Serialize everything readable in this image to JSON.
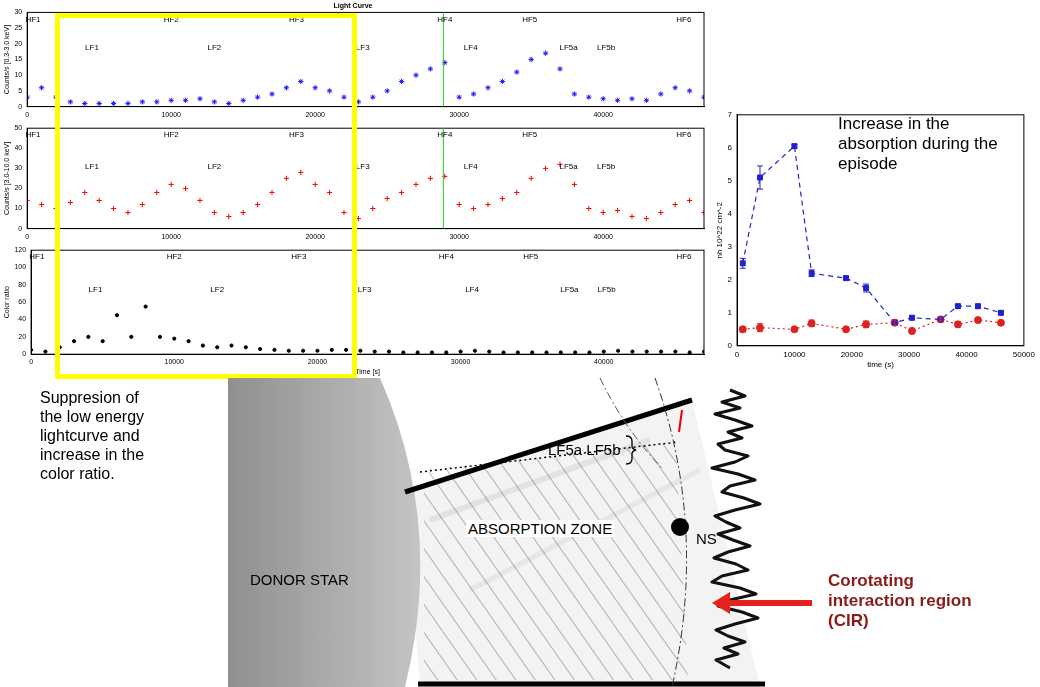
{
  "chart_data": [
    {
      "type": "scatter",
      "title": "Light Curve",
      "y_label": "Counts/s [0.3-3.0 keV]",
      "x": [
        0,
        1000,
        2000,
        3000,
        4000,
        5000,
        6000,
        7000,
        8000,
        9000,
        10000,
        11000,
        12000,
        13000,
        14000,
        15000,
        16000,
        17000,
        18000,
        19000,
        20000,
        21000,
        22000,
        23000,
        24000,
        25000,
        26000,
        27000,
        28000,
        29000,
        30000,
        31000,
        32000,
        33000,
        34000,
        35000,
        36000,
        37000,
        38000,
        39000,
        40000,
        41000,
        42000,
        43000,
        44000,
        45000,
        46000,
        47000
      ],
      "series": [
        {
          "color": "#1a1aff",
          "marker": "star",
          "values": [
            3,
            6,
            3,
            1.5,
            1,
            1,
            1,
            1,
            1.5,
            1.5,
            2,
            2,
            2.5,
            1.5,
            1,
            2,
            3,
            4,
            6,
            8,
            6,
            5,
            3,
            1.5,
            3,
            5,
            8,
            10,
            12,
            14,
            3,
            4,
            6,
            8,
            11,
            15,
            17,
            12,
            4,
            3,
            2.5,
            2,
            2.5,
            2,
            4,
            6,
            5,
            3
          ]
        }
      ],
      "xlim": [
        0,
        47000
      ],
      "xticks": [
        0,
        10000,
        20000,
        30000,
        40000
      ],
      "ylim": [
        0,
        30
      ],
      "yticks": [
        0,
        5,
        10,
        15,
        20,
        25,
        30
      ],
      "grid": false,
      "vertical_line": {
        "x": 28900,
        "color": "#22cc22"
      },
      "phase_labels_high": [
        {
          "text": "HF1",
          "x": 400
        },
        {
          "text": "HF2",
          "x": 10000
        },
        {
          "text": "HF3",
          "x": 18700
        },
        {
          "text": "HF4",
          "x": 29000
        },
        {
          "text": "HF5",
          "x": 34900
        },
        {
          "text": "HF6",
          "x": 45600
        }
      ],
      "phase_labels_low": [
        {
          "text": "LF1",
          "x": 4500
        },
        {
          "text": "LF2",
          "x": 13000
        },
        {
          "text": "LF3",
          "x": 23300
        },
        {
          "text": "LF4",
          "x": 30800
        },
        {
          "text": "LF5a",
          "x": 37600
        },
        {
          "text": "LF5b",
          "x": 40200
        }
      ]
    },
    {
      "type": "scatter",
      "y_label": "Counts/s [3.0-10.0 keV]",
      "x": [
        0,
        1000,
        2000,
        3000,
        4000,
        5000,
        6000,
        7000,
        8000,
        9000,
        10000,
        11000,
        12000,
        13000,
        14000,
        15000,
        16000,
        17000,
        18000,
        19000,
        20000,
        21000,
        22000,
        23000,
        24000,
        25000,
        26000,
        27000,
        28000,
        29000,
        30000,
        31000,
        32000,
        33000,
        34000,
        35000,
        36000,
        37000,
        38000,
        39000,
        40000,
        41000,
        42000,
        43000,
        44000,
        45000,
        46000,
        47000
      ],
      "series": [
        {
          "color": "#ff0000",
          "marker": "cross",
          "values": [
            14,
            12,
            10,
            13,
            18,
            14,
            10,
            8,
            12,
            18,
            22,
            20,
            14,
            8,
            6,
            8,
            12,
            18,
            25,
            28,
            22,
            18,
            8,
            5,
            10,
            15,
            18,
            22,
            25,
            26,
            12,
            10,
            12,
            15,
            18,
            25,
            30,
            32,
            22,
            10,
            8,
            9,
            6,
            5,
            8,
            12,
            14,
            8
          ]
        }
      ],
      "xlim": [
        0,
        47000
      ],
      "xticks": [
        0,
        10000,
        20000,
        30000,
        40000
      ],
      "ylim": [
        0,
        50
      ],
      "yticks": [
        0,
        10,
        20,
        30,
        40,
        50
      ],
      "grid": false,
      "vertical_line": {
        "x": 28900,
        "color": "#22cc22"
      },
      "phase_labels_high": [
        {
          "text": "HF1",
          "x": 400
        },
        {
          "text": "HF2",
          "x": 10000
        },
        {
          "text": "HF3",
          "x": 18700
        },
        {
          "text": "HF4",
          "x": 29000
        },
        {
          "text": "HF5",
          "x": 34900
        },
        {
          "text": "HF6",
          "x": 45600
        }
      ],
      "phase_labels_low": [
        {
          "text": "LF1",
          "x": 4500
        },
        {
          "text": "LF2",
          "x": 13000
        },
        {
          "text": "LF3",
          "x": 23300
        },
        {
          "text": "LF4",
          "x": 30800
        },
        {
          "text": "LF5a",
          "x": 37600
        },
        {
          "text": "LF5b",
          "x": 40200
        }
      ]
    },
    {
      "type": "scatter",
      "y_label": "Color ratio",
      "x_label": "Time [s]",
      "x": [
        0,
        1000,
        2000,
        3000,
        4000,
        5000,
        6000,
        7000,
        8000,
        9000,
        10000,
        11000,
        12000,
        13000,
        14000,
        15000,
        16000,
        17000,
        18000,
        19000,
        20000,
        21000,
        22000,
        23000,
        24000,
        25000,
        26000,
        27000,
        28000,
        29000,
        30000,
        31000,
        32000,
        33000,
        34000,
        35000,
        36000,
        37000,
        38000,
        39000,
        40000,
        41000,
        42000,
        43000,
        44000,
        45000,
        46000,
        47000
      ],
      "series": [
        {
          "color": "#000000",
          "marker": "circle",
          "values": [
            5,
            3,
            8,
            15,
            20,
            15,
            45,
            20,
            55,
            20,
            18,
            15,
            10,
            8,
            10,
            8,
            6,
            5,
            4,
            4,
            4,
            5,
            5,
            4,
            3,
            3,
            2,
            2,
            2,
            2,
            3,
            4,
            3,
            2,
            2,
            2,
            2,
            2,
            2,
            2,
            3,
            4,
            3,
            3,
            3,
            3,
            2,
            3
          ]
        }
      ],
      "xlim": [
        0,
        47000
      ],
      "xticks": [
        0,
        10000,
        20000,
        30000,
        40000
      ],
      "ylim": [
        0,
        120
      ],
      "yticks": [
        0,
        20,
        40,
        60,
        80,
        100,
        120
      ],
      "grid": false,
      "phase_labels_high": [
        {
          "text": "HF1",
          "x": 400
        },
        {
          "text": "HF2",
          "x": 10000
        },
        {
          "text": "HF3",
          "x": 18700
        },
        {
          "text": "HF4",
          "x": 29000
        },
        {
          "text": "HF5",
          "x": 34900
        },
        {
          "text": "HF6",
          "x": 45600
        }
      ],
      "phase_labels_low": [
        {
          "text": "LF1",
          "x": 4500
        },
        {
          "text": "LF2",
          "x": 13000
        },
        {
          "text": "LF3",
          "x": 23300
        },
        {
          "text": "LF4",
          "x": 30800
        },
        {
          "text": "LF5a",
          "x": 37600
        },
        {
          "text": "LF5b",
          "x": 40200
        }
      ]
    },
    {
      "type": "line",
      "x_label": "time (s)",
      "y_label": "nh 10^22 cm^-2",
      "x": [
        1000,
        4000,
        10000,
        13000,
        19000,
        22500,
        27500,
        30500,
        35500,
        38500,
        42000,
        46000
      ],
      "series": [
        {
          "color": "#2222cc",
          "marker": "square",
          "line_style": "dashed",
          "values": [
            2.5,
            5.1,
            6.05,
            2.2,
            2.05,
            1.75,
            0.7,
            0.85,
            0.8,
            1.2,
            1.2,
            1.0
          ],
          "errors": [
            0.15,
            0.35,
            0.06,
            0.1,
            0.06,
            0.12,
            0.06,
            0.06,
            0.05,
            0.06,
            0.06,
            0.06
          ]
        },
        {
          "color": "#dd2222",
          "marker": "circle",
          "line_style": "dotted",
          "values": [
            0.5,
            0.55,
            0.5,
            0.68,
            0.5,
            0.65,
            0.7,
            0.45,
            0.8,
            0.65,
            0.78,
            0.7
          ],
          "errors": [
            0.08,
            0.12,
            0.05,
            0.1,
            0.05,
            0.1,
            0.08,
            0.08,
            0.05,
            0.08,
            0.08,
            0.06
          ]
        }
      ],
      "xlim": [
        0,
        50000
      ],
      "xticks": [
        0,
        10000,
        20000,
        30000,
        40000,
        50000
      ],
      "ylim": [
        0,
        7
      ],
      "yticks": [
        0,
        1,
        2,
        3,
        4,
        5,
        6,
        7
      ],
      "grid": false
    }
  ],
  "annotations": {
    "nh_note": "Increase in the absorption during the episode",
    "lightcurve_note": "Suppresion of the low energy lightcurve and increase in the color ratio."
  },
  "diagram": {
    "donor_label": "DONOR STAR",
    "zone_label": "ABSORPTION ZONE",
    "ns_label": "NS",
    "lf_label": "LF5a LF5b",
    "cir_label": "Corotating interaction region (CIR)"
  }
}
